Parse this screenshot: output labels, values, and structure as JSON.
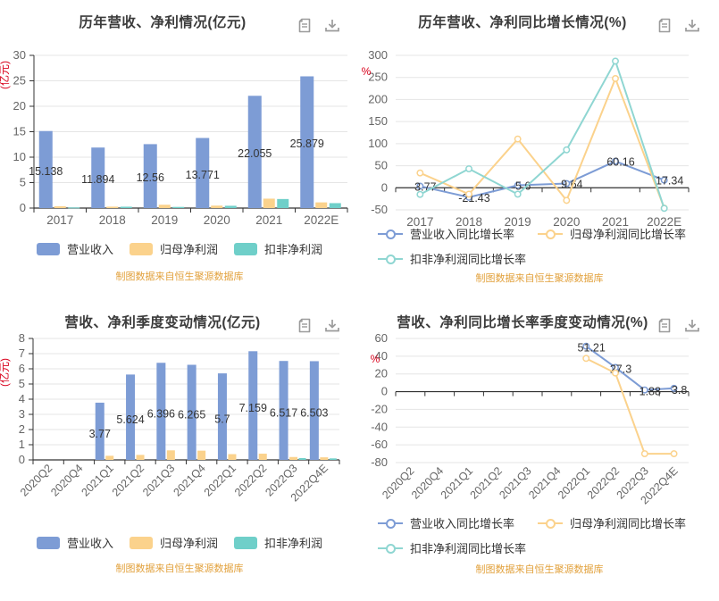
{
  "source_note": "制图数据来自恒生聚源数据库",
  "colors": {
    "revenue": "#7d9cd5",
    "net_profit": "#fbd28c",
    "non_gaap": "#6fcfc9",
    "non_gaap_line": "#8fd6d2",
    "axis_name": "#d9001b",
    "title": "#3b3b3b",
    "tick_label": "#666666",
    "data_label": "#333333",
    "grid_line": "#e5e5e5",
    "axis_line": "#333333",
    "source_text": "#e2a13c",
    "icon": "#9b9b9b"
  },
  "toolbar": {
    "icons": [
      "document-icon",
      "download-icon"
    ]
  },
  "charts": [
    {
      "id": "annual-amount",
      "title": "历年营收、净利情况(亿元)",
      "chart_data": {
        "type": "bar",
        "categories": [
          "2017",
          "2018",
          "2019",
          "2020",
          "2021",
          "2022E"
        ],
        "ylabel": "(亿元)",
        "ylim": [
          0,
          30
        ],
        "ystep": 5,
        "grid": true,
        "legend_position": "bottom-center",
        "series": [
          {
            "name": "营业收入",
            "color": "#7d9cd5",
            "values": [
              15.138,
              11.894,
              12.56,
              13.771,
              22.055,
              25.879
            ],
            "labels": [
              "15.138",
              "11.894",
              "12.56",
              "13.771",
              "22.055",
              "25.879"
            ]
          },
          {
            "name": "归母净利润",
            "color": "#fbd28c",
            "values": [
              0.35,
              0.28,
              0.65,
              0.48,
              1.85,
              1.12
            ]
          },
          {
            "name": "扣非净利润",
            "color": "#6fcfc9",
            "values": [
              0.12,
              0.27,
              0.23,
              0.45,
              1.78,
              0.97
            ]
          }
        ]
      }
    },
    {
      "id": "annual-growth",
      "title": "历年营收、净利同比增长情况(%)",
      "chart_data": {
        "type": "line",
        "categories": [
          "2017",
          "2018",
          "2019",
          "2020",
          "2021",
          "2022E"
        ],
        "ylabel": "%",
        "ylim": [
          -50,
          300
        ],
        "ystep": 50,
        "grid": true,
        "legend_position": "bottom-left-two-rows",
        "series": [
          {
            "name": "营业收入同比增长率",
            "color": "#7d9cd5",
            "values": [
              3.77,
              -21.43,
              5.6,
              9.64,
              60.16,
              17.34
            ],
            "labels": [
              "3.77",
              "-21.43",
              "5.6",
              "9.64",
              "60.16",
              "17.34"
            ]
          },
          {
            "name": "归母净利润同比增长率",
            "color": "#fbd28c",
            "values": [
              33.6,
              -14.4,
              110.5,
              -28.5,
              247.5,
              -46
            ]
          },
          {
            "name": "扣非净利润同比增长率",
            "color": "#8fd6d2",
            "values": [
              -15,
              43,
              -14.5,
              86,
              287,
              -46.5
            ]
          }
        ]
      }
    },
    {
      "id": "quarterly-amount",
      "title": "营收、净利季度变动情况(亿元)",
      "chart_data": {
        "type": "bar",
        "categories": [
          "2020Q2",
          "2020Q4",
          "2021Q1",
          "2021Q2",
          "2021Q3",
          "2021Q4",
          "2022Q1",
          "2022Q2",
          "2022Q3",
          "2022Q4E"
        ],
        "ylabel": "(亿元)",
        "ylim": [
          0,
          8
        ],
        "ystep": 1,
        "grid": true,
        "category_label_rotate": 45,
        "legend_position": "bottom-center",
        "series": [
          {
            "name": "营业收入",
            "color": "#7d9cd5",
            "values": [
              null,
              null,
              3.77,
              5.624,
              6.396,
              6.265,
              5.7,
              7.159,
              6.517,
              6.503
            ],
            "labels": [
              "",
              "",
              "3.77",
              "5.624",
              "6.396",
              "6.265",
              "5.7",
              "7.159",
              "6.517",
              "6.503"
            ]
          },
          {
            "name": "归母净利润",
            "color": "#fbd28c",
            "values": [
              null,
              null,
              0.27,
              0.33,
              0.63,
              0.61,
              0.38,
              0.41,
              0.19,
              0.17
            ]
          },
          {
            "name": "扣非净利润",
            "color": "#6fcfc9",
            "values": [
              null,
              null,
              null,
              null,
              null,
              null,
              null,
              null,
              0.12,
              0.1
            ]
          }
        ]
      }
    },
    {
      "id": "quarterly-growth",
      "title": "营收、净利同比增长率季度变动情况(%)",
      "chart_data": {
        "type": "line",
        "categories": [
          "2020Q2",
          "2020Q4",
          "2021Q1",
          "2021Q2",
          "2021Q3",
          "2021Q4",
          "2022Q1",
          "2022Q2",
          "2022Q3",
          "2022Q4E"
        ],
        "ylabel": "%",
        "ylim": [
          -80,
          60
        ],
        "ystep": 20,
        "grid": true,
        "category_label_rotate": 45,
        "legend_position": "bottom-left-two-rows",
        "series": [
          {
            "name": "营业收入同比增长率",
            "color": "#7d9cd5",
            "values": [
              null,
              null,
              null,
              null,
              null,
              null,
              51.21,
              27.3,
              1.88,
              3.8
            ],
            "labels": [
              "",
              "",
              "",
              "",
              "",
              "",
              "51.21",
              "27.3",
              "1.88",
              "3.8"
            ]
          },
          {
            "name": "归母净利润同比增长率",
            "color": "#fbd28c",
            "values": [
              null,
              null,
              null,
              null,
              null,
              null,
              37.5,
              21,
              -70,
              -70
            ]
          },
          {
            "name": "扣非净利润同比增长率",
            "color": "#8fd6d2",
            "values": [
              null,
              null,
              null,
              null,
              null,
              null,
              null,
              null,
              null,
              null
            ]
          }
        ]
      }
    }
  ]
}
